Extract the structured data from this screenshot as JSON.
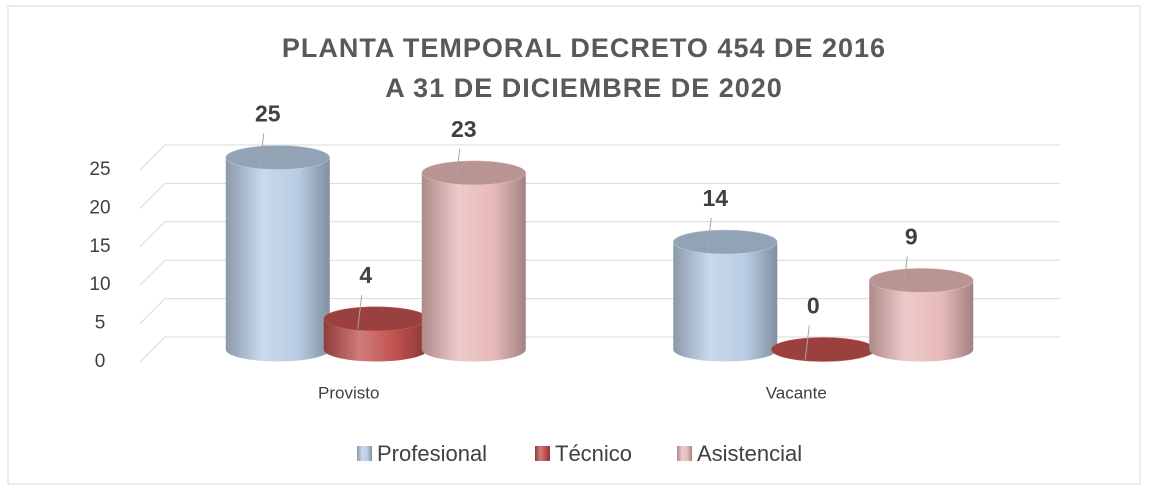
{
  "chart_data": {
    "type": "bar3d",
    "title": [
      "PLANTA TEMPORAL DECRETO 454 DE 2016",
      "A 31 DE DICIEMBRE DE 2020"
    ],
    "categories": [
      "Provisto",
      "Vacante"
    ],
    "series": [
      {
        "name": "Profesional",
        "color": "#b8cce4",
        "values": [
          25,
          14
        ]
      },
      {
        "name": "Técnico",
        "color": "#c0504d",
        "values": [
          4,
          0
        ]
      },
      {
        "name": "Asistencial",
        "color": "#e6b9b8",
        "values": [
          23,
          9
        ]
      }
    ],
    "ylim": [
      0,
      25
    ],
    "yticks": [
      0,
      5,
      10,
      15,
      20,
      25
    ],
    "grid": true,
    "legend": "bottom"
  }
}
